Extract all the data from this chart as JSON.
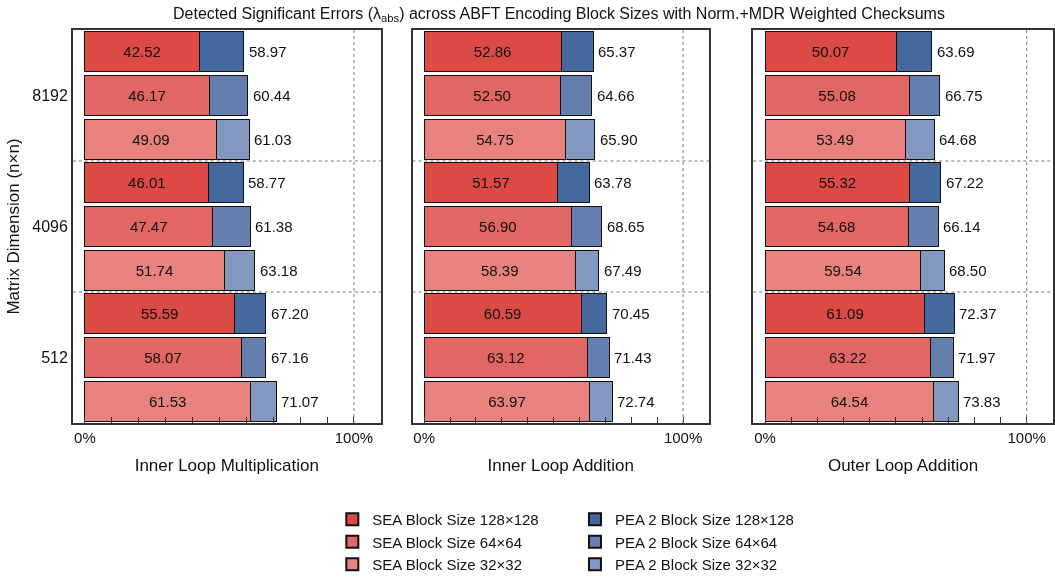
{
  "chart_data": [
    {
      "type": "bar",
      "orientation": "horizontal",
      "stacked": true,
      "title": "Detected Significant Errors (λ$_{abs}$) across ABFT Encoding Block Sizes with Norm.+MDR Weighted Checksums",
      "xlabel": "Inner Loop Multiplication",
      "ylabel": "Matrix Dimension (n×n)",
      "categories": [
        null,
        "8192",
        null,
        null,
        "4096",
        null,
        null,
        "512",
        null
      ],
      "xlim": [
        -4.5,
        110
      ],
      "xticks": [
        {
          "value": 0,
          "label": "0%"
        },
        {
          "value": 10,
          "label": null
        },
        {
          "value": 20,
          "label": null
        },
        {
          "value": 30,
          "label": null
        },
        {
          "value": 40,
          "label": null
        },
        {
          "value": 50,
          "label": null
        },
        {
          "value": 60,
          "label": null
        },
        {
          "value": 70,
          "label": null
        },
        {
          "value": 80,
          "label": null
        },
        {
          "value": 90,
          "label": null
        },
        {
          "value": 100,
          "label": "100%"
        },
        {
          "value": 110,
          "label": null
        }
      ],
      "grid": "y",
      "legend": "bottom",
      "ref_lines": [
        {
          "axis": "x",
          "value": 100,
          "line_style": "dotted"
        }
      ],
      "totals": [
        "58.97",
        "60.44",
        "61.03",
        "58.77",
        "61.38",
        "63.18",
        "67.20",
        "67.16",
        "71.07"
      ],
      "series": [
        {
          "name": "SEA Block Size 128×128",
          "color": "#dc4a46",
          "values": [
            42.52,
            null,
            null,
            46.01,
            null,
            null,
            55.59,
            null,
            null
          ],
          "value_labels": [
            "42.52",
            null,
            null,
            "46.01",
            null,
            null,
            "55.59",
            null,
            null
          ]
        },
        {
          "name": "SEA Block Size 64×64",
          "color": "#e26663",
          "values": [
            null,
            46.17,
            null,
            null,
            47.47,
            null,
            null,
            58.07,
            null
          ],
          "value_labels": [
            null,
            "46.17",
            null,
            null,
            "47.47",
            null,
            null,
            "58.07",
            null
          ]
        },
        {
          "name": "SEA Block Size 32×32",
          "color": "#e8827e",
          "values": [
            null,
            null,
            49.09,
            null,
            null,
            51.74,
            null,
            null,
            61.53
          ],
          "value_labels": [
            null,
            null,
            "49.09",
            null,
            null,
            "51.74",
            null,
            null,
            "61.53"
          ]
        },
        {
          "name": "PEA 2 Block Size 128×128",
          "color": "#46699d",
          "values": [
            16.45,
            null,
            null,
            12.76,
            null,
            null,
            11.61,
            null,
            null
          ]
        },
        {
          "name": "PEA 2 Block Size 64×64",
          "color": "#647fad",
          "values": [
            null,
            14.27,
            null,
            null,
            13.91,
            null,
            null,
            9.09,
            null
          ]
        },
        {
          "name": "PEA 2 Block Size 32×32",
          "color": "#8398bf",
          "values": [
            null,
            null,
            11.94,
            null,
            null,
            11.44,
            null,
            null,
            9.54
          ]
        }
      ]
    },
    {
      "type": "bar",
      "orientation": "horizontal",
      "stacked": true,
      "xlabel": "Inner Loop Addition",
      "tick_labels": "x",
      "categories": [
        null,
        "8192",
        null,
        null,
        "4096",
        null,
        null,
        "512",
        null
      ],
      "xlim": [
        -4.5,
        110
      ],
      "xticks": [
        {
          "value": 0,
          "label": "0%"
        },
        {
          "value": 10,
          "label": null
        },
        {
          "value": 20,
          "label": null
        },
        {
          "value": 30,
          "label": null
        },
        {
          "value": 40,
          "label": null
        },
        {
          "value": 50,
          "label": null
        },
        {
          "value": 60,
          "label": null
        },
        {
          "value": 70,
          "label": null
        },
        {
          "value": 80,
          "label": null
        },
        {
          "value": 90,
          "label": null
        },
        {
          "value": 100,
          "label": "100%"
        },
        {
          "value": 110,
          "label": null
        }
      ],
      "grid": "y",
      "ref_lines": [
        {
          "axis": "x",
          "value": 100,
          "line_style": "dotted"
        }
      ],
      "totals": [
        "65.37",
        "64.66",
        "65.90",
        "63.78",
        "68.65",
        "67.49",
        "70.45",
        "71.43",
        "72.74"
      ],
      "series": [
        {
          "color": "#dc4a46",
          "values": [
            52.86,
            null,
            null,
            51.57,
            null,
            null,
            60.59,
            null,
            null
          ],
          "value_labels": [
            "52.86",
            null,
            null,
            "51.57",
            null,
            null,
            "60.59",
            null,
            null
          ]
        },
        {
          "color": "#e26663",
          "values": [
            null,
            52.5,
            null,
            null,
            56.9,
            null,
            null,
            63.12,
            null
          ],
          "value_labels": [
            null,
            "52.50",
            null,
            null,
            "56.90",
            null,
            null,
            "63.12",
            null
          ]
        },
        {
          "color": "#e8827e",
          "values": [
            null,
            null,
            54.75,
            null,
            null,
            58.39,
            null,
            null,
            63.97
          ],
          "value_labels": [
            null,
            null,
            "54.75",
            null,
            null,
            "58.39",
            null,
            null,
            "63.97"
          ]
        },
        {
          "color": "#46699d",
          "values": [
            12.51,
            null,
            null,
            12.21,
            null,
            null,
            9.86,
            null,
            null
          ]
        },
        {
          "color": "#647fad",
          "values": [
            null,
            12.16,
            null,
            null,
            11.75,
            null,
            null,
            8.31,
            null
          ]
        },
        {
          "color": "#8398bf",
          "values": [
            null,
            null,
            11.15,
            null,
            null,
            9.1,
            null,
            null,
            8.77
          ]
        }
      ]
    },
    {
      "type": "bar",
      "orientation": "horizontal",
      "stacked": true,
      "xlabel": "Outer Loop Addition",
      "tick_labels": "x",
      "categories": [
        null,
        "8192",
        null,
        null,
        "4096",
        null,
        null,
        "512",
        null
      ],
      "xlim": [
        -4.5,
        110
      ],
      "xticks": [
        {
          "value": 0,
          "label": "0%"
        },
        {
          "value": 10,
          "label": null
        },
        {
          "value": 20,
          "label": null
        },
        {
          "value": 30,
          "label": null
        },
        {
          "value": 40,
          "label": null
        },
        {
          "value": 50,
          "label": null
        },
        {
          "value": 60,
          "label": null
        },
        {
          "value": 70,
          "label": null
        },
        {
          "value": 80,
          "label": null
        },
        {
          "value": 90,
          "label": null
        },
        {
          "value": 100,
          "label": "100%"
        },
        {
          "value": 110,
          "label": null
        }
      ],
      "grid": "y",
      "ref_lines": [
        {
          "axis": "x",
          "value": 100,
          "line_style": "dotted"
        }
      ],
      "totals": [
        "63.69",
        "66.75",
        "64.68",
        "67.22",
        "66.14",
        "68.50",
        "72.37",
        "71.97",
        "73.83"
      ],
      "series": [
        {
          "color": "#dc4a46",
          "values": [
            50.07,
            null,
            null,
            55.32,
            null,
            null,
            61.09,
            null,
            null
          ],
          "value_labels": [
            "50.07",
            null,
            null,
            "55.32",
            null,
            null,
            "61.09",
            null,
            null
          ]
        },
        {
          "color": "#e26663",
          "values": [
            null,
            55.08,
            null,
            null,
            54.68,
            null,
            null,
            63.22,
            null
          ],
          "value_labels": [
            null,
            "55.08",
            null,
            null,
            "54.68",
            null,
            null,
            "63.22",
            null
          ]
        },
        {
          "color": "#e8827e",
          "values": [
            null,
            null,
            53.49,
            null,
            null,
            59.54,
            null,
            null,
            64.54
          ],
          "value_labels": [
            null,
            null,
            "53.49",
            null,
            null,
            "59.54",
            null,
            null,
            "64.54"
          ]
        },
        {
          "color": "#46699d",
          "values": [
            13.62,
            null,
            null,
            11.9,
            null,
            null,
            11.28,
            null,
            null
          ]
        },
        {
          "color": "#647fad",
          "values": [
            null,
            11.67,
            null,
            null,
            11.46,
            null,
            null,
            8.75,
            null
          ]
        },
        {
          "color": "#8398bf",
          "values": [
            null,
            null,
            11.19,
            null,
            null,
            8.96,
            null,
            null,
            9.29
          ]
        }
      ]
    }
  ]
}
